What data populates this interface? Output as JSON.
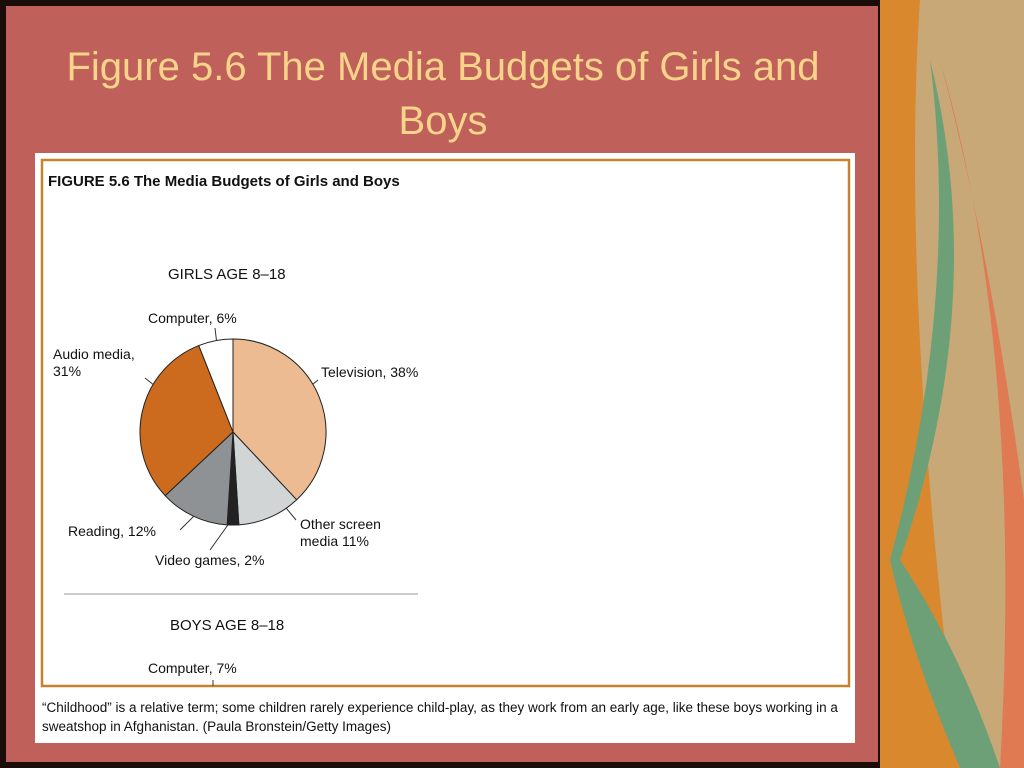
{
  "slide_title": "Figure 5.6 The Media Budgets of Girls and Boys",
  "chart_data": {
    "type": "pie",
    "title": "FIGURE 5.6  The Media Budgets of Girls and Boys",
    "subtitle": "GIRLS AGE 8–18",
    "values": [
      38,
      11,
      2,
      12,
      31,
      6
    ],
    "value_labels": [
      "Television, 38%",
      "Other screen media 11%",
      "Video games, 2%",
      "Reading, 12%",
      "Audio media, 31%",
      "Computer, 6%"
    ],
    "colors": [
      "#ecbb91",
      "#d2d5d6",
      "#222222",
      "#8f9295",
      "#cc6b1e",
      "#ffffff"
    ]
  },
  "boys_section": {
    "title": "BOYS AGE 8–18",
    "label": "Computer, 7%"
  },
  "caption": "“Childhood” is a relative term; some children rarely experience child-play, as they work from an early age, like these boys working in a sweatshop in Afghanistan. (Paula Bronstein/Getty Images)"
}
